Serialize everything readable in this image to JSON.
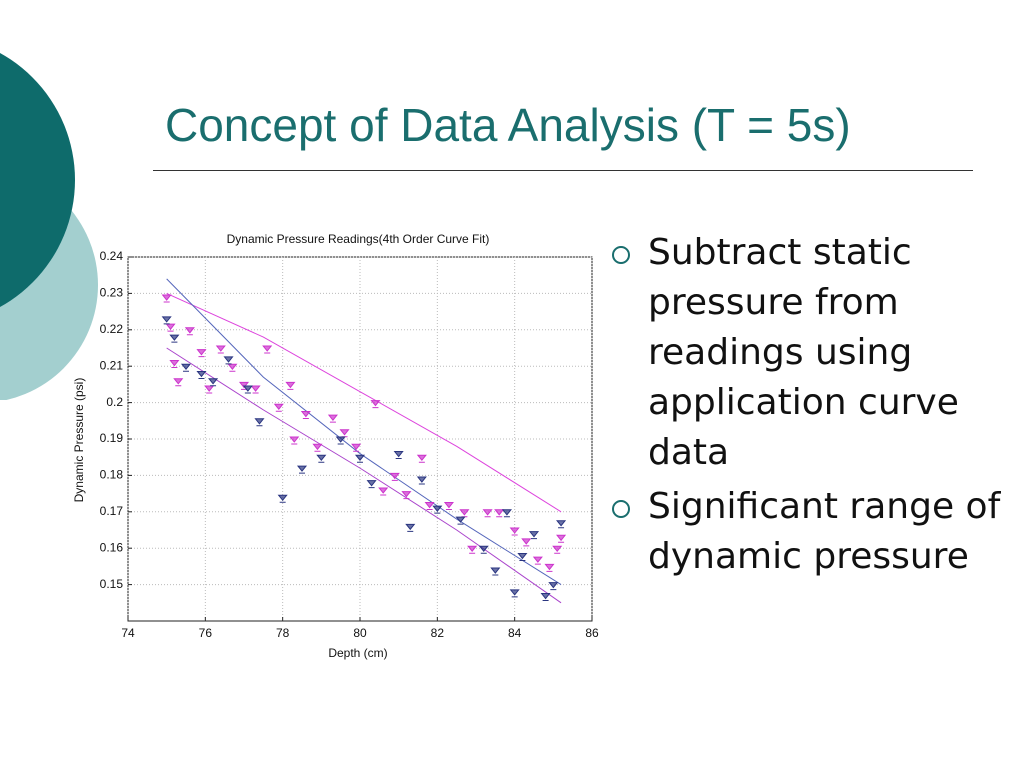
{
  "slide": {
    "title": "Concept of Data Analysis (T = 5s)",
    "bullets": [
      "Subtract static pressure from readings using application curve data",
      "Significant range of dynamic pressure"
    ]
  },
  "chart_data": {
    "type": "scatter",
    "title": "Dynamic Pressure Readings(4th Order Curve Fit)",
    "x_label": "Depth (cm)",
    "y_label": "Dynamic Pressure (psi)",
    "xlim": [
      74,
      86
    ],
    "xticks": [
      74,
      76,
      78,
      80,
      82,
      84,
      86
    ],
    "ylim": [
      0.14,
      0.24
    ],
    "yticks": [
      0.15,
      0.16,
      0.17,
      0.18,
      0.19,
      0.2,
      0.21,
      0.22,
      0.23,
      0.24
    ],
    "grid": true,
    "series": [
      {
        "color": "#cc33cc",
        "x": [
          75,
          75.1,
          75.2,
          75.3,
          75.6,
          75.9,
          76.1,
          76.4,
          76.7,
          77.0,
          77.3,
          77.6,
          77.9,
          78.2,
          78.3,
          78.6,
          78.9,
          79.3,
          79.6,
          79.9,
          80.4,
          80.6,
          80.9,
          81.2,
          81.6,
          81.8,
          82.3,
          82.7,
          82.9,
          83.3,
          83.6,
          84.0,
          84.3,
          84.6,
          84.9,
          85.1,
          85.2
        ],
        "values": [
          0.229,
          0.221,
          0.211,
          0.206,
          0.22,
          0.214,
          0.204,
          0.215,
          0.21,
          0.205,
          0.204,
          0.215,
          0.199,
          0.205,
          0.19,
          0.197,
          0.188,
          0.196,
          0.192,
          0.188,
          0.2,
          0.176,
          0.18,
          0.175,
          0.185,
          0.172,
          0.172,
          0.17,
          0.16,
          0.17,
          0.17,
          0.165,
          0.162,
          0.157,
          0.155,
          0.16,
          0.163
        ]
      },
      {
        "color": "#2a3580",
        "x": [
          75,
          75.2,
          75.5,
          75.9,
          76.2,
          76.6,
          77.1,
          77.4,
          78.0,
          78.5,
          79.0,
          79.5,
          80.0,
          80.3,
          81.0,
          81.3,
          81.6,
          82.0,
          82.6,
          83.2,
          83.5,
          83.8,
          84.0,
          84.2,
          84.5,
          84.8,
          85.0,
          85.2
        ],
        "values": [
          0.223,
          0.218,
          0.21,
          0.208,
          0.206,
          0.212,
          0.204,
          0.195,
          0.174,
          0.182,
          0.185,
          0.19,
          0.185,
          0.178,
          0.186,
          0.166,
          0.179,
          0.171,
          0.168,
          0.16,
          0.154,
          0.17,
          0.148,
          0.158,
          0.164,
          0.147,
          0.15,
          0.167
        ]
      }
    ],
    "fit_lines": [
      {
        "color": "#dd44dd",
        "x": [
          75,
          77.5,
          80,
          82.5,
          85.2
        ],
        "values": [
          0.23,
          0.218,
          0.203,
          0.188,
          0.17
        ]
      },
      {
        "color": "#5566bb",
        "x": [
          75,
          77.5,
          80,
          82.5,
          85.2
        ],
        "values": [
          0.234,
          0.207,
          0.186,
          0.168,
          0.15
        ]
      },
      {
        "color": "#aa44cc",
        "x": [
          75,
          77.5,
          80,
          82.5,
          85.2
        ],
        "values": [
          0.215,
          0.198,
          0.182,
          0.165,
          0.145
        ]
      }
    ]
  }
}
